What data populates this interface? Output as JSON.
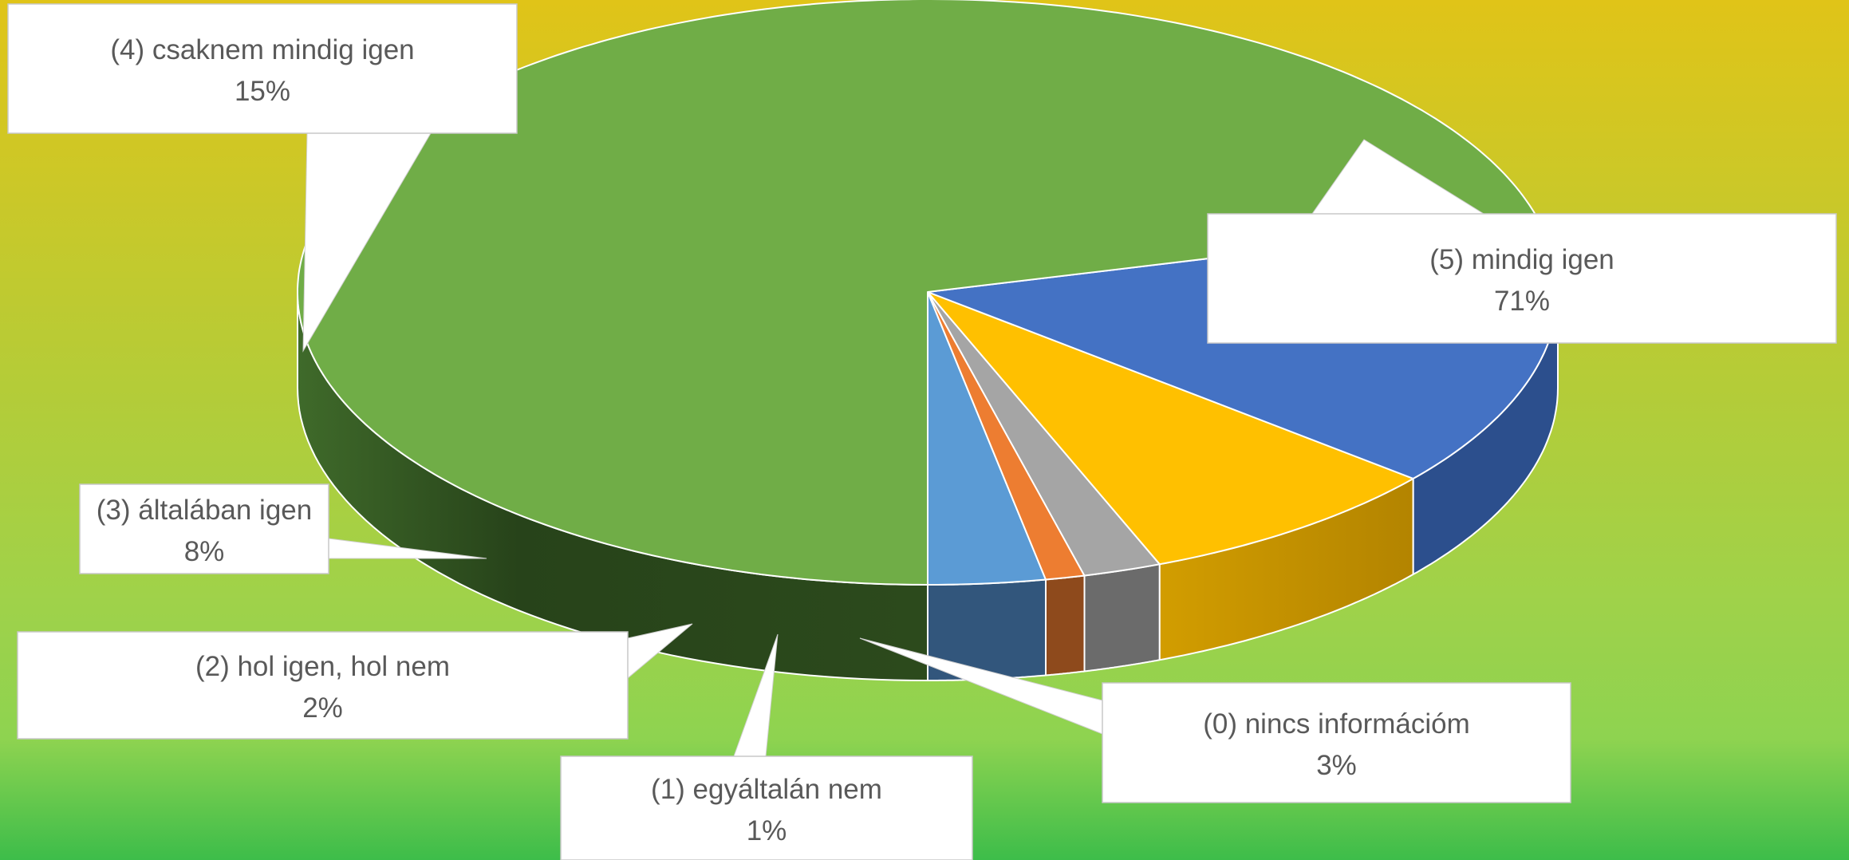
{
  "chart_data": {
    "type": "pie",
    "style": "3d-exploded-free",
    "title": "",
    "slices": [
      {
        "label": "(0) nincs információm",
        "value": 3,
        "display": "3%",
        "color": "#5b9bd5",
        "side_color": "#32567c"
      },
      {
        "label": "(1) egyáltalán nem",
        "value": 1,
        "display": "1%",
        "color": "#ed7d31",
        "side_color": "#8e4a1c"
      },
      {
        "label": "(2) hol igen, hol nem",
        "value": 2,
        "display": "2%",
        "color": "#a5a5a5",
        "side_color": "#6b6b6b"
      },
      {
        "label": "(3) általában igen",
        "value": 8,
        "display": "8%",
        "color": "#ffc000",
        "side_color": "#b88a00"
      },
      {
        "label": "(4) csaknem mindig igen",
        "value": 15,
        "display": "15%",
        "color": "#4472c4",
        "side_color": "#2c4f8d"
      },
      {
        "label": "(5) mindig igen",
        "value": 71,
        "display": "71%",
        "color": "#70ad47",
        "side_color": "#2f4d1e"
      }
    ],
    "start": "6 o'clock, counterclockwise",
    "legend": "none",
    "data_labels": "callouts with category name and percentage",
    "background": [
      "#e0c418",
      "#8ed350",
      "#3dbd4a"
    ]
  }
}
